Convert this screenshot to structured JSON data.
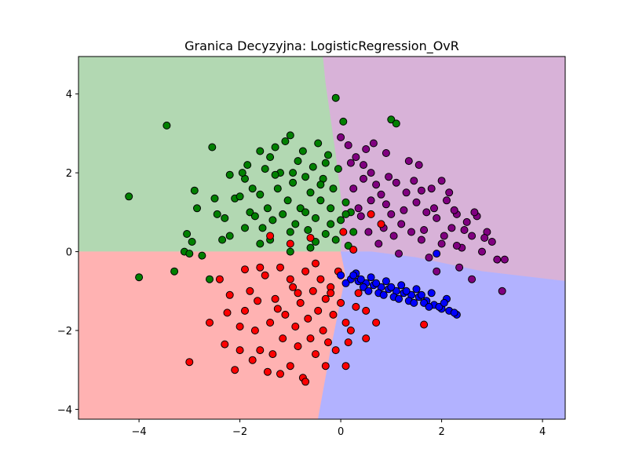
{
  "chart_data": {
    "type": "scatter",
    "title": "Granica Decyzyjna: LogisticRegression_OvR",
    "xlabel": "",
    "ylabel": "",
    "xlim": [
      -5.2,
      4.45
    ],
    "ylim": [
      -4.25,
      4.95
    ],
    "xticks": [
      -4,
      -2,
      0,
      2,
      4
    ],
    "yticks": [
      -4,
      -2,
      0,
      2,
      4
    ],
    "xtick_labels": [
      "−4",
      "−2",
      "0",
      "2",
      "4"
    ],
    "ytick_labels": [
      "−4",
      "−2",
      "0",
      "2",
      "4"
    ],
    "grid": false,
    "legend": "none",
    "regions": [
      {
        "class": "green",
        "color": "#b2d8b2",
        "polygon": [
          [
            -5.2,
            4.95
          ],
          [
            -0.35,
            4.95
          ],
          [
            -0.3,
            4.3
          ],
          [
            -0.1,
            2.5
          ],
          [
            0.05,
            0.95
          ],
          [
            0.0,
            0.0
          ],
          [
            -4.4,
            0.0
          ],
          [
            -5.2,
            0.0
          ]
        ]
      },
      {
        "class": "purple",
        "color": "#d8b2d8",
        "polygon": [
          [
            -0.35,
            4.95
          ],
          [
            4.45,
            4.95
          ],
          [
            4.45,
            -0.75
          ],
          [
            2.8,
            -0.5
          ],
          [
            1.5,
            -0.15
          ],
          [
            0.6,
            0.0
          ],
          [
            0.0,
            0.0
          ],
          [
            0.05,
            0.95
          ],
          [
            -0.1,
            2.5
          ],
          [
            -0.3,
            4.3
          ]
        ]
      },
      {
        "class": "red",
        "color": "#ffb2b2",
        "polygon": [
          [
            -5.2,
            0.0
          ],
          [
            -4.4,
            0.0
          ],
          [
            0.0,
            0.0
          ],
          [
            0.1,
            -0.6
          ],
          [
            -0.2,
            -2.5
          ],
          [
            -0.45,
            -4.25
          ],
          [
            -5.2,
            -4.25
          ]
        ]
      },
      {
        "class": "blue",
        "color": "#b2b2ff",
        "polygon": [
          [
            0.0,
            0.0
          ],
          [
            0.6,
            0.0
          ],
          [
            1.5,
            -0.15
          ],
          [
            2.8,
            -0.5
          ],
          [
            4.45,
            -0.75
          ],
          [
            4.45,
            -4.25
          ],
          [
            -0.45,
            -4.25
          ],
          [
            -0.2,
            -2.5
          ],
          [
            0.1,
            -0.6
          ]
        ]
      }
    ],
    "series": [
      {
        "color": "#008000",
        "points": [
          [
            -3.45,
            3.2
          ],
          [
            -2.55,
            2.65
          ],
          [
            -4.2,
            1.4
          ],
          [
            -4.0,
            -0.65
          ],
          [
            -3.3,
            -0.5
          ],
          [
            -2.9,
            1.55
          ],
          [
            -3.05,
            0.45
          ],
          [
            -3.1,
            0.0
          ],
          [
            -2.95,
            0.25
          ],
          [
            -2.85,
            1.1
          ],
          [
            -2.5,
            1.35
          ],
          [
            -2.45,
            0.95
          ],
          [
            -2.3,
            0.85
          ],
          [
            -2.2,
            1.95
          ],
          [
            -2.1,
            1.35
          ],
          [
            -2.0,
            1.4
          ],
          [
            -1.9,
            1.85
          ],
          [
            -1.85,
            2.2
          ],
          [
            -1.8,
            1.0
          ],
          [
            -1.7,
            0.9
          ],
          [
            -1.6,
            1.45
          ],
          [
            -1.55,
            0.6
          ],
          [
            -1.5,
            2.1
          ],
          [
            -1.45,
            1.1
          ],
          [
            -1.4,
            2.4
          ],
          [
            -1.35,
            0.8
          ],
          [
            -1.3,
            2.65
          ],
          [
            -1.25,
            1.6
          ],
          [
            -1.2,
            2.0
          ],
          [
            -1.15,
            0.95
          ],
          [
            -1.1,
            2.8
          ],
          [
            -1.05,
            1.3
          ],
          [
            -1.0,
            2.95
          ],
          [
            -0.95,
            1.75
          ],
          [
            -0.9,
            0.7
          ],
          [
            -0.85,
            2.3
          ],
          [
            -0.8,
            1.1
          ],
          [
            -0.75,
            2.55
          ],
          [
            -0.7,
            1.9
          ],
          [
            -0.65,
            0.55
          ],
          [
            -0.6,
            1.5
          ],
          [
            -0.55,
            2.15
          ],
          [
            -0.5,
            0.85
          ],
          [
            -0.45,
            2.75
          ],
          [
            -0.4,
            1.3
          ],
          [
            -0.35,
            1.85
          ],
          [
            -0.3,
            0.45
          ],
          [
            -0.25,
            2.45
          ],
          [
            -0.2,
            1.1
          ],
          [
            -0.15,
            1.6
          ],
          [
            -0.1,
            0.3
          ],
          [
            -0.05,
            2.1
          ],
          [
            0.0,
            0.8
          ],
          [
            0.1,
            1.25
          ],
          [
            0.15,
            0.15
          ],
          [
            0.2,
            1.0
          ],
          [
            0.25,
            0.5
          ],
          [
            -1.6,
            0.2
          ],
          [
            -1.9,
            0.6
          ],
          [
            -2.2,
            0.4
          ],
          [
            -2.6,
            -0.7
          ],
          [
            -2.75,
            -0.1
          ],
          [
            -1.4,
            0.3
          ],
          [
            -1.0,
            0.5
          ],
          [
            -0.6,
            0.1
          ],
          [
            -0.2,
            0.7
          ],
          [
            0.1,
            0.95
          ],
          [
            -2.35,
            0.3
          ],
          [
            -1.75,
            1.6
          ],
          [
            -1.3,
            1.95
          ],
          [
            -0.7,
            1.0
          ],
          [
            -0.4,
            1.7
          ],
          [
            -1.0,
            0.0
          ],
          [
            -0.5,
            0.25
          ],
          [
            -3.0,
            -0.05
          ],
          [
            -1.95,
            2.0
          ],
          [
            -1.6,
            2.55
          ],
          [
            -0.95,
            2.0
          ],
          [
            -0.3,
            2.25
          ],
          [
            -0.1,
            3.9
          ],
          [
            1.0,
            3.35
          ],
          [
            1.1,
            3.25
          ],
          [
            0.05,
            3.3
          ]
        ]
      },
      {
        "color": "#800080",
        "points": [
          [
            0.0,
            2.9
          ],
          [
            0.15,
            2.7
          ],
          [
            0.3,
            2.4
          ],
          [
            0.45,
            2.2
          ],
          [
            0.6,
            2.0
          ],
          [
            0.7,
            1.7
          ],
          [
            0.8,
            1.45
          ],
          [
            0.9,
            1.2
          ],
          [
            1.0,
            0.95
          ],
          [
            1.1,
            1.75
          ],
          [
            1.2,
            0.7
          ],
          [
            1.3,
            1.5
          ],
          [
            1.4,
            0.5
          ],
          [
            1.5,
            1.25
          ],
          [
            1.6,
            0.3
          ],
          [
            1.7,
            1.0
          ],
          [
            1.8,
            1.6
          ],
          [
            1.9,
            0.85
          ],
          [
            2.0,
            0.2
          ],
          [
            2.1,
            1.3
          ],
          [
            2.2,
            0.6
          ],
          [
            2.3,
            0.95
          ],
          [
            2.4,
            0.1
          ],
          [
            2.5,
            0.75
          ],
          [
            2.6,
            0.4
          ],
          [
            2.7,
            0.9
          ],
          [
            2.8,
            0.0
          ],
          [
            2.9,
            0.5
          ],
          [
            3.0,
            0.25
          ],
          [
            3.1,
            -0.2
          ],
          [
            3.25,
            -0.2
          ],
          [
            0.5,
            2.6
          ],
          [
            0.65,
            2.75
          ],
          [
            0.9,
            2.5
          ],
          [
            1.35,
            2.3
          ],
          [
            1.55,
            2.2
          ],
          [
            2.0,
            1.8
          ],
          [
            2.15,
            1.5
          ],
          [
            0.35,
            1.1
          ],
          [
            0.55,
            0.5
          ],
          [
            0.75,
            0.2
          ],
          [
            1.15,
            -0.05
          ],
          [
            1.75,
            -0.15
          ],
          [
            2.35,
            -0.4
          ],
          [
            2.6,
            -0.7
          ],
          [
            3.2,
            -1.0
          ],
          [
            0.25,
            1.6
          ],
          [
            0.4,
            0.9
          ],
          [
            0.6,
            1.3
          ],
          [
            0.85,
            0.6
          ],
          [
            1.05,
            0.4
          ],
          [
            1.25,
            1.05
          ],
          [
            1.45,
            1.8
          ],
          [
            1.65,
            0.55
          ],
          [
            1.85,
            1.1
          ],
          [
            2.05,
            0.4
          ],
          [
            2.25,
            1.05
          ],
          [
            2.45,
            0.55
          ],
          [
            2.65,
            1.0
          ],
          [
            2.85,
            0.35
          ],
          [
            0.2,
            2.25
          ],
          [
            0.45,
            1.85
          ],
          [
            0.95,
            1.9
          ],
          [
            1.6,
            1.55
          ],
          [
            2.3,
            0.15
          ],
          [
            1.9,
            -0.5
          ]
        ]
      },
      {
        "color": "#ff0000",
        "points": [
          [
            -3.0,
            -2.8
          ],
          [
            -2.6,
            -1.8
          ],
          [
            -2.3,
            -2.35
          ],
          [
            -2.1,
            -3.0
          ],
          [
            -2.0,
            -2.5
          ],
          [
            -1.9,
            -1.5
          ],
          [
            -1.8,
            -1.0
          ],
          [
            -1.7,
            -2.0
          ],
          [
            -1.6,
            -2.5
          ],
          [
            -1.5,
            -0.6
          ],
          [
            -1.4,
            -1.8
          ],
          [
            -1.35,
            -2.6
          ],
          [
            -1.3,
            -1.2
          ],
          [
            -1.2,
            -0.4
          ],
          [
            -1.15,
            -2.2
          ],
          [
            -1.1,
            -1.6
          ],
          [
            -1.0,
            -2.9
          ],
          [
            -0.95,
            -0.9
          ],
          [
            -0.9,
            -1.9
          ],
          [
            -0.85,
            -2.4
          ],
          [
            -0.8,
            -1.3
          ],
          [
            -0.75,
            -3.2
          ],
          [
            -0.7,
            -0.5
          ],
          [
            -0.65,
            -1.7
          ],
          [
            -0.6,
            -2.2
          ],
          [
            -0.55,
            -1.0
          ],
          [
            -0.5,
            -2.6
          ],
          [
            -0.45,
            -1.5
          ],
          [
            -0.4,
            -0.7
          ],
          [
            -0.35,
            -2.0
          ],
          [
            -0.3,
            -1.2
          ],
          [
            -0.25,
            -2.3
          ],
          [
            -0.2,
            -0.9
          ],
          [
            -0.15,
            -1.6
          ],
          [
            -0.1,
            -2.5
          ],
          [
            -0.05,
            -0.5
          ],
          [
            0.0,
            -1.3
          ],
          [
            0.1,
            -1.8
          ],
          [
            0.2,
            -2.0
          ],
          [
            0.3,
            -1.4
          ],
          [
            0.5,
            -1.5
          ],
          [
            0.7,
            -1.8
          ],
          [
            0.8,
            0.7
          ],
          [
            0.6,
            0.95
          ],
          [
            -1.4,
            0.4
          ],
          [
            -1.0,
            0.2
          ],
          [
            -0.6,
            0.35
          ],
          [
            0.05,
            0.5
          ],
          [
            0.25,
            0.05
          ],
          [
            -2.4,
            -0.7
          ],
          [
            -2.2,
            -1.1
          ],
          [
            -1.6,
            -0.4
          ],
          [
            -1.2,
            -3.1
          ],
          [
            -0.7,
            -3.3
          ],
          [
            -0.3,
            -2.9
          ],
          [
            0.15,
            -2.3
          ],
          [
            0.5,
            -2.2
          ],
          [
            1.65,
            -1.85
          ],
          [
            -2.0,
            -1.9
          ],
          [
            -1.75,
            -2.75
          ],
          [
            -1.45,
            -3.05
          ],
          [
            -1.0,
            -0.7
          ],
          [
            -0.5,
            -0.3
          ],
          [
            -0.85,
            -1.05
          ],
          [
            -1.25,
            -1.45
          ],
          [
            -1.65,
            -1.25
          ],
          [
            -2.25,
            -1.55
          ],
          [
            -1.9,
            -0.45
          ],
          [
            0.1,
            -2.9
          ],
          [
            -0.2,
            -1.05
          ],
          [
            0.35,
            -1.05
          ]
        ]
      },
      {
        "color": "#0000ff",
        "points": [
          [
            0.0,
            -0.6
          ],
          [
            0.2,
            -0.7
          ],
          [
            0.35,
            -0.75
          ],
          [
            0.5,
            -0.8
          ],
          [
            0.65,
            -0.85
          ],
          [
            0.8,
            -0.9
          ],
          [
            0.95,
            -0.95
          ],
          [
            1.1,
            -1.0
          ],
          [
            1.25,
            -1.05
          ],
          [
            1.4,
            -1.1
          ],
          [
            1.55,
            -1.15
          ],
          [
            1.7,
            -1.25
          ],
          [
            1.85,
            -1.35
          ],
          [
            2.0,
            -1.45
          ],
          [
            2.15,
            -1.5
          ],
          [
            2.3,
            -1.6
          ],
          [
            0.1,
            -0.8
          ],
          [
            0.3,
            -0.55
          ],
          [
            0.45,
            -0.9
          ],
          [
            0.6,
            -0.65
          ],
          [
            0.75,
            -1.05
          ],
          [
            0.9,
            -0.75
          ],
          [
            1.05,
            -1.15
          ],
          [
            1.2,
            -0.85
          ],
          [
            1.35,
            -1.25
          ],
          [
            1.5,
            -0.95
          ],
          [
            1.65,
            -1.3
          ],
          [
            1.8,
            -1.05
          ],
          [
            1.95,
            -1.4
          ],
          [
            2.1,
            -1.2
          ],
          [
            2.25,
            -1.55
          ],
          [
            0.55,
            -1.0
          ],
          [
            0.85,
            -1.1
          ],
          [
            1.15,
            -1.2
          ],
          [
            1.45,
            -1.3
          ],
          [
            1.75,
            -1.4
          ],
          [
            1.9,
            -0.05
          ],
          [
            0.25,
            -0.6
          ],
          [
            0.4,
            -0.7
          ],
          [
            0.7,
            -0.8
          ],
          [
            1.0,
            -0.9
          ],
          [
            1.3,
            -1.0
          ],
          [
            1.6,
            -1.1
          ],
          [
            2.05,
            -1.3
          ]
        ]
      }
    ]
  }
}
